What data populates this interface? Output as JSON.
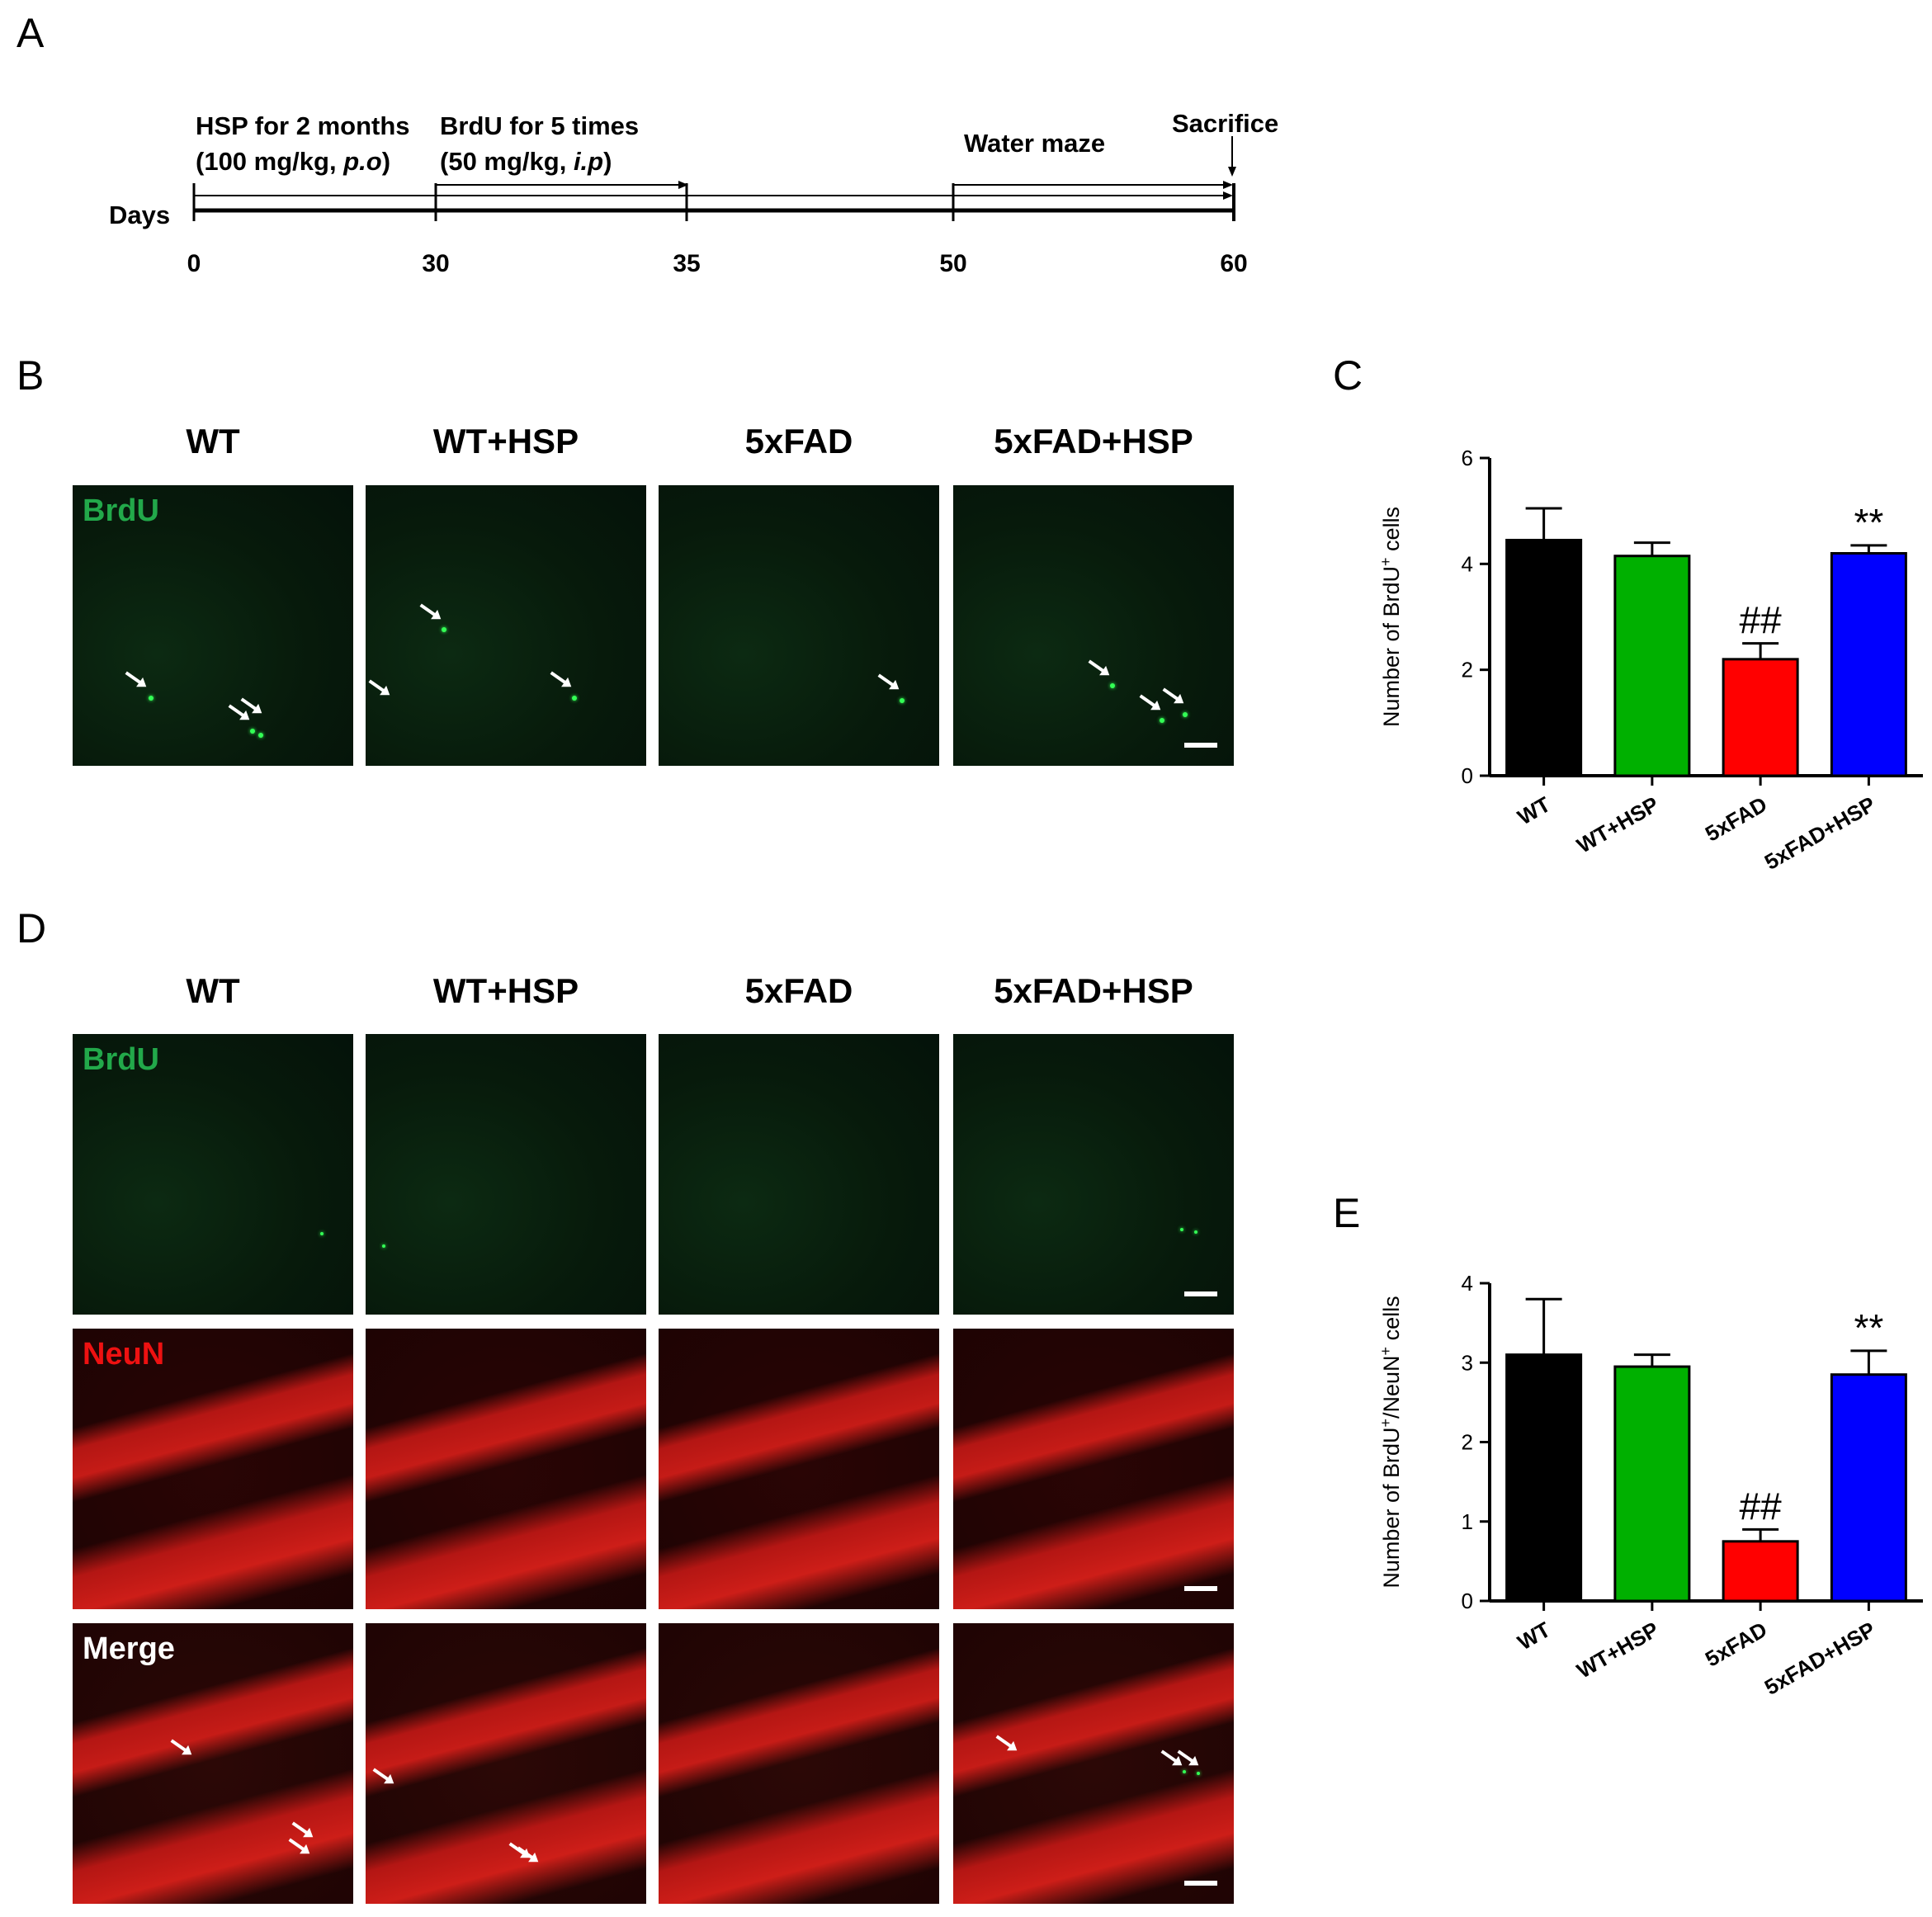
{
  "panels": {
    "a": "A",
    "b": "B",
    "c": "C",
    "d": "D",
    "e": "E"
  },
  "timeline": {
    "hsp_line1": "HSP for 2 months",
    "hsp_line2_pre": "(100 mg/kg, ",
    "hsp_line2_route": "p.o",
    "hsp_line2_post": ")",
    "brdu_line1": "BrdU for 5 times",
    "brdu_line2_pre": "(50 mg/kg, ",
    "brdu_line2_route": "i.p",
    "brdu_line2_post": ")",
    "water_maze": "Water maze",
    "sacrifice": "Sacrifice",
    "days_label": "Days",
    "ticks": [
      "0",
      "30",
      "35",
      "50",
      "60"
    ]
  },
  "groups": [
    "WT",
    "WT+HSP",
    "5xFAD",
    "5xFAD+HSP"
  ],
  "stains": {
    "brdu": "BrdU",
    "neun": "NeuN",
    "merge": "Merge"
  },
  "colors": {
    "WT": "#000000",
    "WT+HSP": "#00b000",
    "5xFAD": "#ff0000",
    "5xFAD+HSP": "#0000ff",
    "brdu_label": "#22a84a",
    "neun_label": "#ee1111",
    "merge_label": "#ffffff"
  },
  "chart_data": [
    {
      "panel": "C",
      "type": "bar",
      "categories": [
        "WT",
        "WT+HSP",
        "5xFAD",
        "5xFAD+HSP"
      ],
      "values": [
        4.45,
        4.15,
        2.2,
        4.2
      ],
      "errors": [
        0.6,
        0.25,
        0.3,
        0.15
      ],
      "annotations": [
        "",
        "",
        "##",
        "**"
      ],
      "ylabel_pre": "Number of BrdU",
      "ylabel_sup": "+",
      "ylabel_post": " cells",
      "ylim": [
        0,
        6
      ],
      "yticks": [
        "0",
        "2",
        "4",
        "6"
      ]
    },
    {
      "panel": "E",
      "type": "bar",
      "categories": [
        "WT",
        "WT+HSP",
        "5xFAD",
        "5xFAD+HSP"
      ],
      "values": [
        3.1,
        2.95,
        0.75,
        2.85
      ],
      "errors": [
        0.7,
        0.15,
        0.15,
        0.3
      ],
      "annotations": [
        "",
        "",
        "##",
        "**"
      ],
      "ylabel_pre": "Number of BrdU",
      "ylabel_sup": "+",
      "ylabel_mid": "/NeuN",
      "ylabel_sup2": "+",
      "ylabel_post": " cells",
      "ylim": [
        0,
        4
      ],
      "yticks": [
        "0",
        "1",
        "2",
        "3",
        "4"
      ]
    }
  ]
}
